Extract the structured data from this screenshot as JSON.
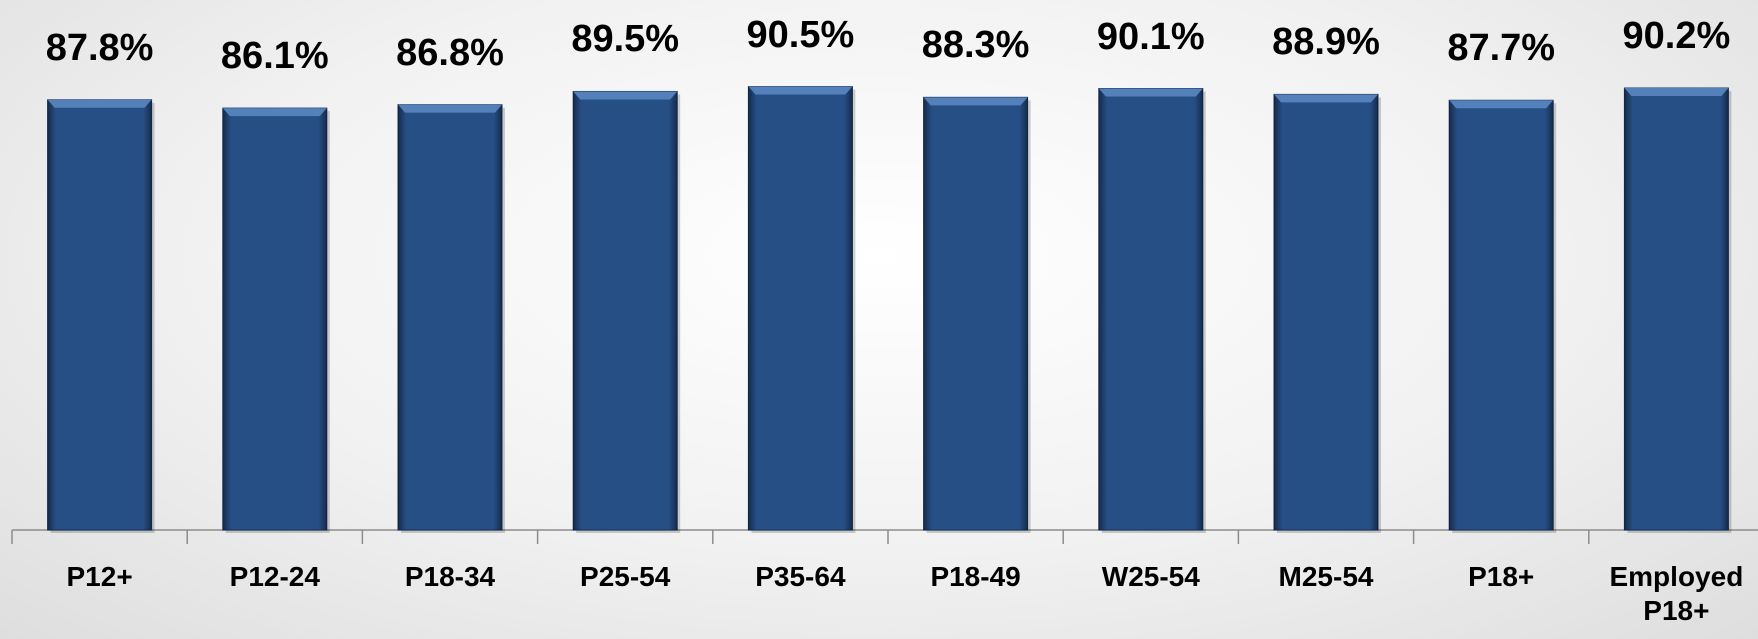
{
  "chart_data": {
    "type": "bar",
    "categories": [
      "P12+",
      "P12-24",
      "P18-34",
      "P25-54",
      "P35-64",
      "P18-49",
      "W25-54",
      "M25-54",
      "P18+",
      "Employed P18+"
    ],
    "values": [
      87.8,
      86.1,
      86.8,
      89.5,
      90.5,
      88.3,
      90.1,
      88.9,
      87.7,
      90.2
    ],
    "value_labels": [
      "87.8%",
      "86.1%",
      "86.8%",
      "89.5%",
      "90.5%",
      "88.3%",
      "90.1%",
      "88.9%",
      "87.7%",
      "90.2%"
    ],
    "color": "#264f86",
    "ylim": [
      0,
      100
    ]
  }
}
